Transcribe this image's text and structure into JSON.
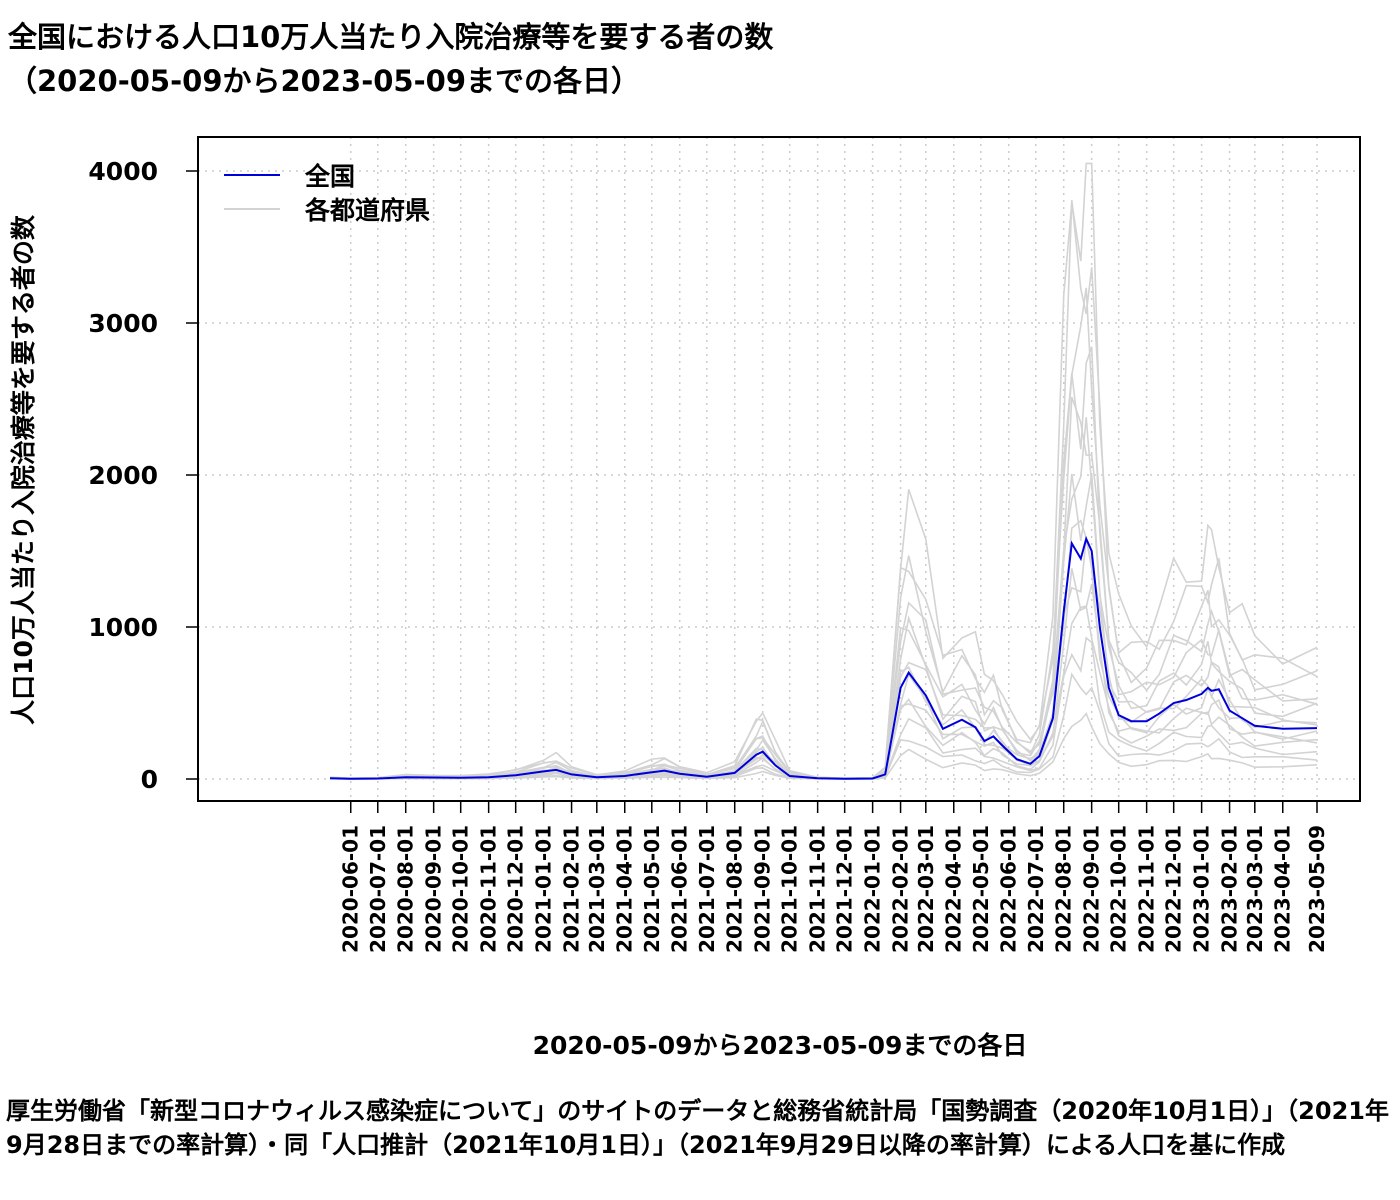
{
  "title_line1": "全国における人口10万人当たり入院治療等を要する者の数",
  "title_line2": "（2020-05-09から2023-05-09までの各日）",
  "caption": "厚生労働省「新型コロナウィルス感染症について」のサイトのデータと総務省統計局「国勢調査（2020年10月1日）」（2021年9月28日までの率計算）・同「人口推計（2021年10月1日）」（2021年9月29日以降の率計算）による人口を基に作成",
  "colors": {
    "national": "#0000dd",
    "prefectures": "#d3d3d3",
    "grid": "#cccccc"
  },
  "chart_data": {
    "type": "line",
    "title": "全国における人口10万人当たり入院治療等を要する者の数（2020-05-09から2023-05-09までの各日）",
    "xlabel": "2020-05-09から2023-05-09までの各日",
    "ylabel": "人口10万人当たり入院治療等を要する者の数",
    "xlim": [
      "2020-05-09",
      "2023-05-09"
    ],
    "ylim": [
      0,
      4000
    ],
    "yticks": [
      0,
      1000,
      2000,
      3000,
      4000
    ],
    "xticks": [
      "2020-06-01",
      "2020-07-01",
      "2020-08-01",
      "2020-09-01",
      "2020-10-01",
      "2020-11-01",
      "2020-12-01",
      "2021-01-01",
      "2021-02-01",
      "2021-03-01",
      "2021-04-01",
      "2021-05-01",
      "2021-06-01",
      "2021-07-01",
      "2021-08-01",
      "2021-09-01",
      "2021-10-01",
      "2021-11-01",
      "2021-12-01",
      "2022-01-01",
      "2022-02-01",
      "2022-03-01",
      "2022-04-01",
      "2022-05-01",
      "2022-06-01",
      "2022-07-01",
      "2022-08-01",
      "2022-09-01",
      "2022-10-01",
      "2022-11-01",
      "2022-12-01",
      "2023-01-01",
      "2023-02-01",
      "2023-03-01",
      "2023-04-01",
      "2023-05-09"
    ],
    "grid": true,
    "legend": {
      "placement": "top-left",
      "entries": [
        "全国",
        "各都道府県"
      ]
    },
    "series": [
      {
        "name": "全国",
        "x": [
          "2020-05-09",
          "2020-06-01",
          "2020-07-01",
          "2020-08-01",
          "2020-09-01",
          "2020-10-01",
          "2020-11-01",
          "2020-12-01",
          "2021-01-01",
          "2021-01-15",
          "2021-02-01",
          "2021-03-01",
          "2021-04-01",
          "2021-05-01",
          "2021-05-15",
          "2021-06-01",
          "2021-07-01",
          "2021-08-01",
          "2021-08-25",
          "2021-09-01",
          "2021-09-15",
          "2021-10-01",
          "2021-11-01",
          "2021-12-01",
          "2022-01-01",
          "2022-01-15",
          "2022-02-01",
          "2022-02-10",
          "2022-03-01",
          "2022-03-20",
          "2022-04-10",
          "2022-04-25",
          "2022-05-05",
          "2022-05-15",
          "2022-05-25",
          "2022-06-10",
          "2022-06-25",
          "2022-07-05",
          "2022-07-20",
          "2022-08-01",
          "2022-08-10",
          "2022-08-20",
          "2022-08-26",
          "2022-09-01",
          "2022-09-10",
          "2022-09-20",
          "2022-10-01",
          "2022-10-15",
          "2022-11-01",
          "2022-11-15",
          "2022-12-01",
          "2022-12-15",
          "2023-01-01",
          "2023-01-08",
          "2023-01-12",
          "2023-01-20",
          "2023-02-01",
          "2023-02-15",
          "2023-03-01",
          "2023-04-01",
          "2023-05-09"
        ],
        "values": [
          5,
          2,
          3,
          12,
          10,
          8,
          12,
          25,
          50,
          60,
          30,
          12,
          20,
          45,
          55,
          35,
          15,
          40,
          160,
          180,
          90,
          20,
          5,
          2,
          3,
          30,
          600,
          700,
          550,
          330,
          390,
          340,
          250,
          280,
          220,
          130,
          100,
          150,
          400,
          1100,
          1550,
          1450,
          1580,
          1500,
          1000,
          600,
          420,
          380,
          380,
          430,
          500,
          520,
          560,
          600,
          580,
          590,
          450,
          400,
          350,
          330,
          335
        ]
      }
    ]
  }
}
